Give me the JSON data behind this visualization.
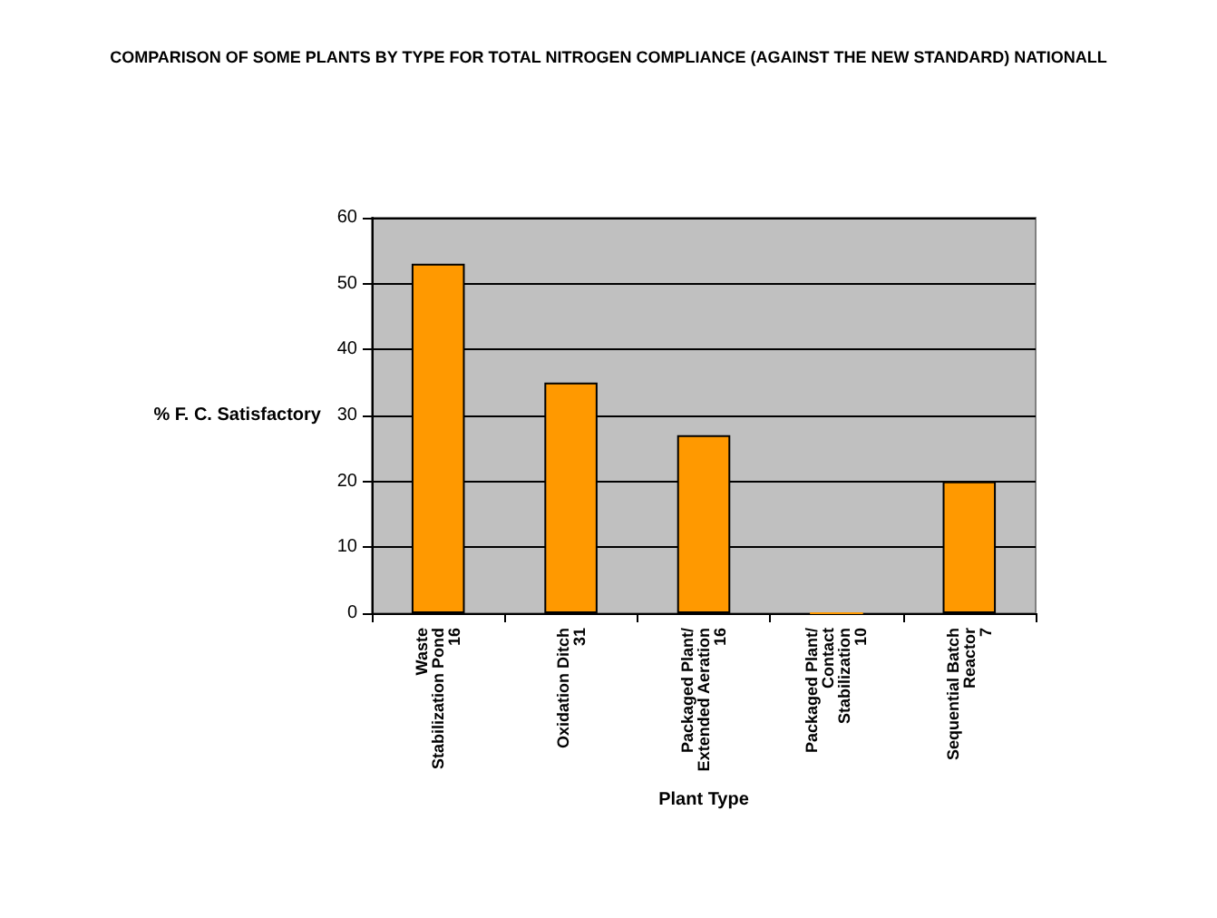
{
  "chart_data": {
    "type": "bar",
    "title": "COMPARISON OF SOME PLANTS BY TYPE FOR TOTAL NITROGEN COMPLIANCE (AGAINST THE NEW STANDARD) NATIONALL",
    "xlabel": "Plant Type",
    "ylabel": "% F. C. Satisfactory",
    "categories": [
      "Waste\nStabilization Pond\n16",
      "Oxidation Ditch\n31",
      "Packaged Plant/\nExtended Aeration\n16",
      "Packaged Plant/\nContact\nStabilization\n10",
      "Sequential Batch\nReactor\n7"
    ],
    "values": [
      53,
      35,
      27,
      0,
      20
    ],
    "color": "#ff9900",
    "ylim": [
      0,
      60
    ],
    "yticks": [
      0,
      10,
      20,
      30,
      40,
      50,
      60
    ],
    "grid": "y"
  }
}
